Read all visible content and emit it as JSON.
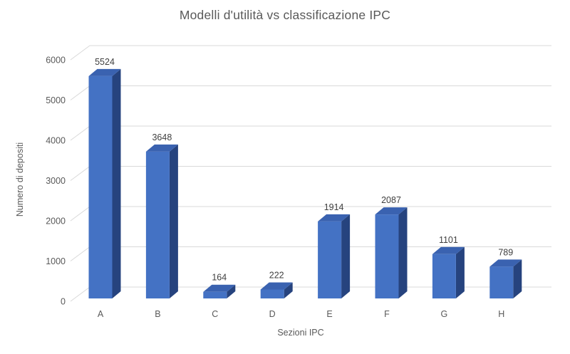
{
  "chart_data": {
    "type": "bar",
    "style": "3d-clustered-column",
    "title": "Modelli d'utilità vs classificazione IPC",
    "xlabel": "Sezioni IPC",
    "ylabel": "Numero di depositi",
    "categories": [
      "A",
      "B",
      "C",
      "D",
      "E",
      "F",
      "G",
      "H"
    ],
    "values": [
      5524,
      3648,
      164,
      222,
      1914,
      2087,
      1101,
      789
    ],
    "ylim": [
      0,
      6000
    ],
    "ytick_step": 1000,
    "ytick_labels": [
      "0",
      "1000",
      "2000",
      "3000",
      "4000",
      "5000",
      "6000"
    ],
    "grid": true,
    "legend": false,
    "data_labels_shown": true,
    "colors": {
      "bar_front": "#4472C4",
      "bar_top": "#3A62B0",
      "bar_side": "#26437E",
      "gridline": "#D9D9D9",
      "title_text": "#595959",
      "axis_text": "#595959",
      "data_label_text": "#3F3F3F",
      "background": "#FFFFFF"
    }
  }
}
